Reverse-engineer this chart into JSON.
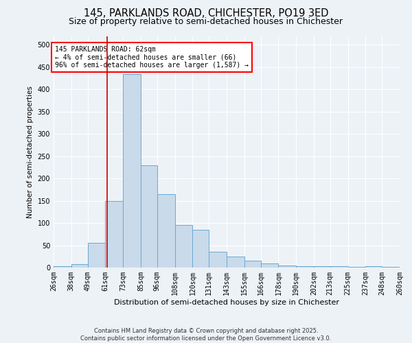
{
  "title": "145, PARKLANDS ROAD, CHICHESTER, PO19 3ED",
  "subtitle": "Size of property relative to semi-detached houses in Chichester",
  "xlabel": "Distribution of semi-detached houses by size in Chichester",
  "ylabel": "Number of semi-detached properties",
  "footer_line1": "Contains HM Land Registry data © Crown copyright and database right 2025.",
  "footer_line2": "Contains public sector information licensed under the Open Government Licence v3.0.",
  "annotation_line1": "145 PARKLANDS ROAD: 62sqm",
  "annotation_line2": "← 4% of semi-detached houses are smaller (66)",
  "annotation_line3": "96% of semi-detached houses are larger (1,587) →",
  "bar_color": "#c9daea",
  "bar_edge_color": "#6aaad4",
  "red_line_x": 62,
  "red_line_color": "#cc0000",
  "bins": [
    26,
    38,
    49,
    61,
    73,
    85,
    96,
    108,
    120,
    131,
    143,
    155,
    166,
    178,
    190,
    202,
    213,
    225,
    237,
    248,
    260
  ],
  "counts": [
    3,
    8,
    55,
    150,
    435,
    230,
    165,
    95,
    85,
    35,
    25,
    15,
    10,
    5,
    3,
    3,
    3,
    1,
    3,
    1
  ],
  "ylim": [
    0,
    520
  ],
  "yticks": [
    0,
    50,
    100,
    150,
    200,
    250,
    300,
    350,
    400,
    450,
    500
  ],
  "bg_color": "#edf2f7",
  "plot_bg_color": "#edf2f7",
  "grid_color": "#ffffff",
  "title_fontsize": 10.5,
  "subtitle_fontsize": 9,
  "tick_fontsize": 7,
  "ylabel_fontsize": 7.5,
  "xlabel_fontsize": 8
}
